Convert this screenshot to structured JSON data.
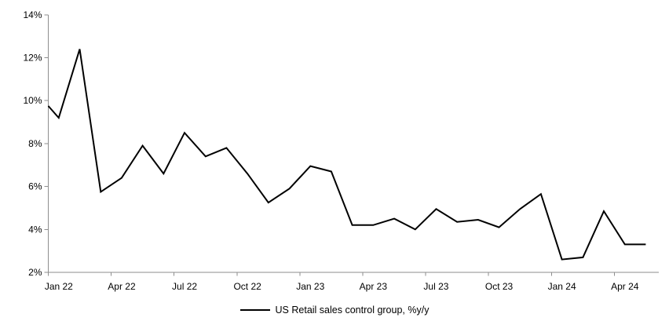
{
  "chart_data": {
    "type": "line",
    "title": "",
    "legend": "US Retail sales control group, %y/y",
    "legend_position": "bottom-center",
    "grid": false,
    "line_color": "#000000",
    "axis_color": "#8E8E8E",
    "text_color": "#000000",
    "ylim": [
      2,
      14
    ],
    "y_tick_step": 2,
    "y_tick_labels": [
      "2%",
      "4%",
      "6%",
      "8%",
      "10%",
      "12%",
      "14%"
    ],
    "x_tick_labels": [
      "Jan 22",
      "Apr 22",
      "Jul 22",
      "Oct 22",
      "Jan 23",
      "Apr 23",
      "Jul 23",
      "Oct 23",
      "Jan 24",
      "Apr 24"
    ],
    "x_label_interval_months": 3,
    "series": [
      {
        "name": "US Retail sales control group, %y/y",
        "months": [
          "Jan 22",
          "Feb 22",
          "Mar 22",
          "Apr 22",
          "May 22",
          "Jun 22",
          "Jul 22",
          "Aug 22",
          "Sep 22",
          "Oct 22",
          "Nov 22",
          "Dec 22",
          "Jan 23",
          "Feb 23",
          "Mar 23",
          "Apr 23",
          "May 23",
          "Jun 23",
          "Jul 23",
          "Aug 23",
          "Sep 23",
          "Oct 23",
          "Nov 23",
          "Dec 23",
          "Jan 24",
          "Feb 24",
          "Mar 24",
          "Apr 24",
          "May 24"
        ],
        "values": [
          9.2,
          12.4,
          5.75,
          6.4,
          7.9,
          6.6,
          8.5,
          7.4,
          7.8,
          6.6,
          5.25,
          5.9,
          6.95,
          6.7,
          4.2,
          4.2,
          4.5,
          4.0,
          4.95,
          4.35,
          4.45,
          4.1,
          4.95,
          5.65,
          2.6,
          2.7,
          4.85,
          3.3,
          3.3
        ],
        "edge_start_value_at_axis": 9.75
      }
    ]
  }
}
